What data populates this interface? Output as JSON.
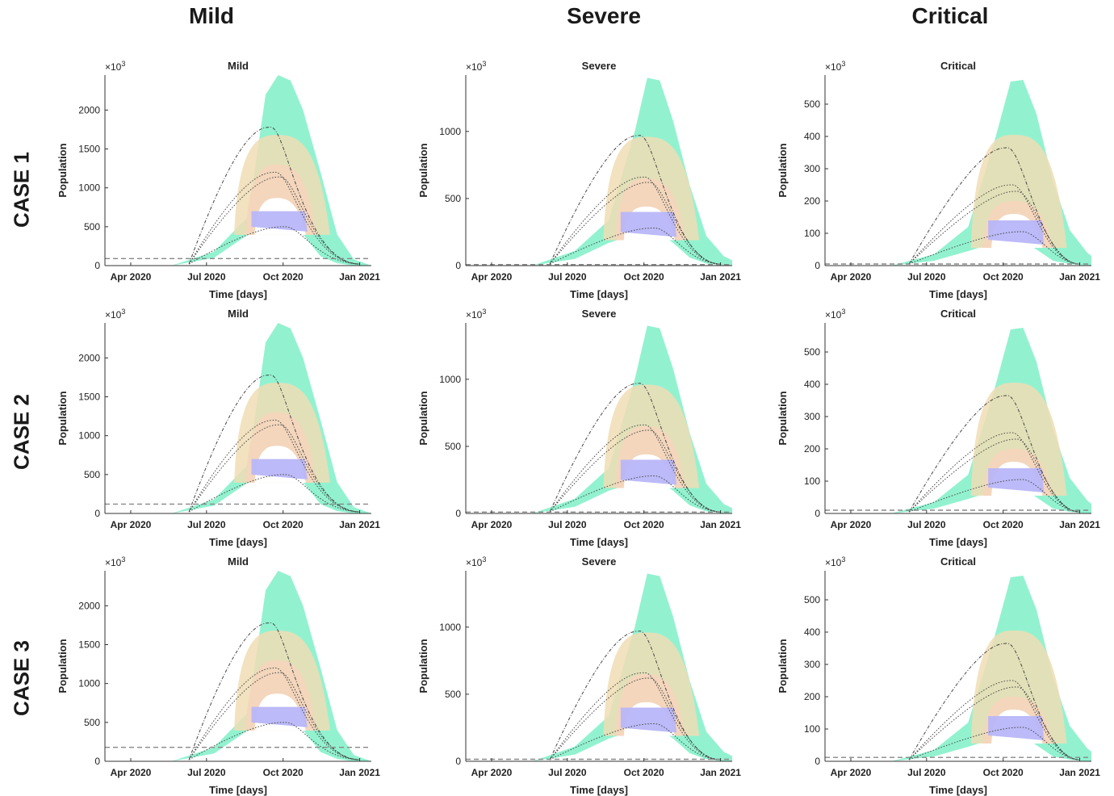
{
  "columns": [
    "Mild",
    "Severe",
    "Critical"
  ],
  "rows": [
    "CASE 1",
    "CASE 2",
    "CASE 3"
  ],
  "colors": {
    "band_green": "#7ff0c8",
    "band_tan": "#f0ddb4",
    "band_peach": "#f3d5bc",
    "band_white": "#ffffff",
    "band_blue": "#b8b6f8",
    "curve": "#444444",
    "threshold": "#888888",
    "axis": "#333333"
  },
  "chart_data": [
    {
      "type": "area",
      "title": "Mild",
      "xlabel": "Time [days]",
      "ylabel": "Population",
      "multiplier": "×10",
      "multiplier_exp": "3",
      "xticks": [
        "Apr 2020",
        "Jul 2020",
        "Oct 2020",
        "Jan 2021"
      ],
      "xlim": [
        "2020-03-01",
        "2021-01-15"
      ],
      "ylim": [
        0,
        2450
      ],
      "yticks": [
        0,
        500,
        1000,
        1500,
        2000
      ],
      "threshold": 90,
      "envelope": {
        "x": [
          "2020-05-20",
          "2020-07-10",
          "2020-08-20",
          "2020-09-10",
          "2020-09-25",
          "2020-10-10",
          "2020-10-25",
          "2020-11-15",
          "2020-12-05",
          "2020-12-25",
          "2021-01-15"
        ],
        "upper": [
          0,
          180,
          630,
          2200,
          2450,
          2380,
          2000,
          1200,
          400,
          80,
          0
        ],
        "lower": [
          0,
          100,
          400,
          500,
          500,
          480,
          400,
          120,
          30,
          0,
          0
        ]
      },
      "peak": {
        "x": "2020-09-25",
        "blue": 700,
        "white": 870,
        "peach": 1300,
        "tan": 1680,
        "green": 2450
      },
      "series": [
        {
          "values": [
            1780,
            1200,
            1140,
            500
          ],
          "style": "dashdot"
        }
      ]
    },
    {
      "type": "area",
      "title": "Severe",
      "xlabel": "Time [days]",
      "ylabel": "Population",
      "multiplier": "×10",
      "multiplier_exp": "3",
      "xticks": [
        "Apr 2020",
        "Jul 2020",
        "Oct 2020",
        "Jan 2021"
      ],
      "xlim": [
        "2020-03-01",
        "2021-01-15"
      ],
      "ylim": [
        0,
        1420
      ],
      "yticks": [
        0,
        500,
        1000
      ],
      "threshold": 8,
      "envelope": {
        "x": [
          "2020-05-20",
          "2020-07-10",
          "2020-08-20",
          "2020-09-20",
          "2020-10-05",
          "2020-10-20",
          "2020-11-05",
          "2020-11-25",
          "2020-12-15",
          "2021-01-05",
          "2021-01-15"
        ],
        "upper": [
          0,
          110,
          340,
          1000,
          1400,
          1380,
          1080,
          600,
          220,
          70,
          40
        ],
        "lower": [
          0,
          50,
          170,
          230,
          250,
          240,
          170,
          60,
          15,
          0,
          0
        ]
      },
      "peak": {
        "x": "2020-10-05",
        "blue": 400,
        "white": 440,
        "peach": 650,
        "tan": 960,
        "green": 1400
      },
      "series": [
        {
          "values": [
            970,
            660,
            620,
            280
          ],
          "style": "dashdot"
        }
      ]
    },
    {
      "type": "area",
      "title": "Critical",
      "xlabel": "Time [days]",
      "ylabel": "Population",
      "multiplier": "×10",
      "multiplier_exp": "3",
      "xticks": [
        "Apr 2020",
        "Jul 2020",
        "Oct 2020",
        "Jan 2021"
      ],
      "xlim": [
        "2020-03-01",
        "2021-01-15"
      ],
      "ylim": [
        0,
        590
      ],
      "yticks": [
        0,
        100,
        200,
        300,
        400,
        500
      ],
      "threshold": 5,
      "envelope": {
        "x": [
          "2020-05-20",
          "2020-07-10",
          "2020-08-20",
          "2020-09-20",
          "2020-10-10",
          "2020-10-25",
          "2020-11-10",
          "2020-11-30",
          "2020-12-20",
          "2021-01-10",
          "2021-01-15"
        ],
        "upper": [
          0,
          35,
          120,
          380,
          570,
          575,
          470,
          260,
          110,
          40,
          30
        ],
        "lower": [
          0,
          15,
          45,
          70,
          80,
          75,
          50,
          15,
          5,
          0,
          0
        ]
      },
      "peak": {
        "x": "2020-10-15",
        "blue": 140,
        "white": 160,
        "peach": 200,
        "tan": 405,
        "green": 580
      },
      "series": [
        {
          "values": [
            365,
            250,
            230,
            105
          ],
          "style": "dashdot"
        }
      ]
    },
    {
      "type": "area",
      "title": "Mild",
      "xlabel": "Time [days]",
      "ylabel": "Population",
      "multiplier": "×10",
      "multiplier_exp": "3",
      "xticks": [
        "Apr 2020",
        "Jul 2020",
        "Oct 2020",
        "Jan 2021"
      ],
      "xlim": [
        "2020-03-01",
        "2021-01-15"
      ],
      "ylim": [
        0,
        2450
      ],
      "yticks": [
        0,
        500,
        1000,
        1500,
        2000
      ],
      "threshold": 120,
      "envelope": {
        "x": [
          "2020-05-20",
          "2020-07-10",
          "2020-08-20",
          "2020-09-10",
          "2020-09-25",
          "2020-10-10",
          "2020-10-25",
          "2020-11-15",
          "2020-12-05",
          "2020-12-25",
          "2021-01-15"
        ],
        "upper": [
          0,
          180,
          630,
          2200,
          2450,
          2380,
          2000,
          1200,
          400,
          80,
          0
        ],
        "lower": [
          0,
          100,
          400,
          500,
          500,
          480,
          400,
          120,
          30,
          0,
          0
        ]
      },
      "peak": {
        "x": "2020-09-25",
        "blue": 700,
        "white": 870,
        "peach": 1300,
        "tan": 1680,
        "green": 2450
      },
      "series": [
        {
          "values": [
            1780,
            1200,
            1140,
            500
          ],
          "style": "dashdot"
        }
      ]
    },
    {
      "type": "area",
      "title": "Severe",
      "xlabel": "Time [days]",
      "ylabel": "Population",
      "multiplier": "×10",
      "multiplier_exp": "3",
      "xticks": [
        "Apr 2020",
        "Jul 2020",
        "Oct 2020",
        "Jan 2021"
      ],
      "xlim": [
        "2020-03-01",
        "2021-01-15"
      ],
      "ylim": [
        0,
        1420
      ],
      "yticks": [
        0,
        500,
        1000
      ],
      "threshold": 10,
      "envelope": {
        "x": [
          "2020-05-20",
          "2020-07-10",
          "2020-08-20",
          "2020-09-20",
          "2020-10-05",
          "2020-10-20",
          "2020-11-05",
          "2020-11-25",
          "2020-12-15",
          "2021-01-05",
          "2021-01-15"
        ],
        "upper": [
          0,
          110,
          340,
          1000,
          1400,
          1380,
          1080,
          600,
          220,
          70,
          40
        ],
        "lower": [
          0,
          50,
          170,
          230,
          250,
          240,
          170,
          60,
          15,
          0,
          0
        ]
      },
      "peak": {
        "x": "2020-10-05",
        "blue": 400,
        "white": 440,
        "peach": 650,
        "tan": 960,
        "green": 1400
      },
      "series": [
        {
          "values": [
            970,
            660,
            620,
            280
          ],
          "style": "dashdot"
        }
      ]
    },
    {
      "type": "area",
      "title": "Critical",
      "xlabel": "Time [days]",
      "ylabel": "Population",
      "multiplier": "×10",
      "multiplier_exp": "3",
      "xticks": [
        "Apr 2020",
        "Jul 2020",
        "Oct 2020",
        "Jan 2021"
      ],
      "xlim": [
        "2020-03-01",
        "2021-01-15"
      ],
      "ylim": [
        0,
        590
      ],
      "yticks": [
        0,
        100,
        200,
        300,
        400,
        500
      ],
      "threshold": 10,
      "envelope": {
        "x": [
          "2020-05-20",
          "2020-07-10",
          "2020-08-20",
          "2020-09-20",
          "2020-10-10",
          "2020-10-25",
          "2020-11-10",
          "2020-11-30",
          "2020-12-20",
          "2021-01-10",
          "2021-01-15"
        ],
        "upper": [
          0,
          35,
          120,
          380,
          570,
          575,
          470,
          260,
          110,
          40,
          30
        ],
        "lower": [
          0,
          15,
          45,
          70,
          80,
          75,
          50,
          15,
          5,
          0,
          0
        ]
      },
      "peak": {
        "x": "2020-10-15",
        "blue": 140,
        "white": 160,
        "peach": 200,
        "tan": 405,
        "green": 580
      },
      "series": [
        {
          "values": [
            365,
            250,
            230,
            105
          ],
          "style": "dashdot"
        }
      ]
    },
    {
      "type": "area",
      "title": "Mild",
      "xlabel": "Time [days]",
      "ylabel": "Population",
      "multiplier": "×10",
      "multiplier_exp": "3",
      "xticks": [
        "Apr 2020",
        "Jul 2020",
        "Oct 2020",
        "Jan 2021"
      ],
      "xlim": [
        "2020-03-01",
        "2021-01-15"
      ],
      "ylim": [
        0,
        2450
      ],
      "yticks": [
        0,
        500,
        1000,
        1500,
        2000
      ],
      "threshold": 180,
      "envelope": {
        "x": [
          "2020-05-20",
          "2020-07-10",
          "2020-08-20",
          "2020-09-10",
          "2020-09-25",
          "2020-10-10",
          "2020-10-25",
          "2020-11-15",
          "2020-12-05",
          "2020-12-25",
          "2021-01-15"
        ],
        "upper": [
          0,
          180,
          630,
          2200,
          2450,
          2380,
          2000,
          1200,
          400,
          80,
          0
        ],
        "lower": [
          0,
          100,
          400,
          500,
          500,
          480,
          400,
          120,
          30,
          0,
          0
        ]
      },
      "peak": {
        "x": "2020-09-25",
        "blue": 700,
        "white": 870,
        "peach": 1300,
        "tan": 1680,
        "green": 2450
      },
      "series": [
        {
          "values": [
            1780,
            1200,
            1140,
            500
          ],
          "style": "dashdot"
        }
      ]
    },
    {
      "type": "area",
      "title": "Severe",
      "xlabel": "Time [days]",
      "ylabel": "Population",
      "multiplier": "×10",
      "multiplier_exp": "3",
      "xticks": [
        "Apr 2020",
        "Jul 2020",
        "Oct 2020",
        "Jan 2021"
      ],
      "xlim": [
        "2020-03-01",
        "2021-01-15"
      ],
      "ylim": [
        0,
        1420
      ],
      "yticks": [
        0,
        500,
        1000
      ],
      "threshold": 15,
      "envelope": {
        "x": [
          "2020-05-20",
          "2020-07-10",
          "2020-08-20",
          "2020-09-20",
          "2020-10-05",
          "2020-10-20",
          "2020-11-05",
          "2020-11-25",
          "2020-12-15",
          "2021-01-05",
          "2021-01-15"
        ],
        "upper": [
          0,
          110,
          340,
          1000,
          1400,
          1380,
          1080,
          600,
          220,
          70,
          40
        ],
        "lower": [
          0,
          50,
          170,
          230,
          250,
          240,
          170,
          60,
          15,
          0,
          0
        ]
      },
      "peak": {
        "x": "2020-10-05",
        "blue": 400,
        "white": 440,
        "peach": 650,
        "tan": 960,
        "green": 1400
      },
      "series": [
        {
          "values": [
            970,
            660,
            620,
            280
          ],
          "style": "dashdot"
        }
      ]
    },
    {
      "type": "area",
      "title": "Critical",
      "xlabel": "Time [days]",
      "ylabel": "Population",
      "multiplier": "×10",
      "multiplier_exp": "3",
      "xticks": [
        "Apr 2020",
        "Jul 2020",
        "Oct 2020",
        "Jan 2021"
      ],
      "xlim": [
        "2020-03-01",
        "2021-01-15"
      ],
      "ylim": [
        0,
        590
      ],
      "yticks": [
        0,
        100,
        200,
        300,
        400,
        500
      ],
      "threshold": 12,
      "envelope": {
        "x": [
          "2020-05-20",
          "2020-07-10",
          "2020-08-20",
          "2020-09-20",
          "2020-10-10",
          "2020-10-25",
          "2020-11-10",
          "2020-11-30",
          "2020-12-20",
          "2021-01-10",
          "2021-01-15"
        ],
        "upper": [
          0,
          35,
          120,
          380,
          570,
          575,
          470,
          260,
          110,
          40,
          30
        ],
        "lower": [
          0,
          15,
          45,
          70,
          80,
          75,
          50,
          15,
          5,
          0,
          0
        ]
      },
      "peak": {
        "x": "2020-10-15",
        "blue": 140,
        "white": 160,
        "peach": 200,
        "tan": 405,
        "green": 580
      },
      "series": [
        {
          "values": [
            365,
            250,
            230,
            105
          ],
          "style": "dashdot"
        }
      ]
    }
  ]
}
